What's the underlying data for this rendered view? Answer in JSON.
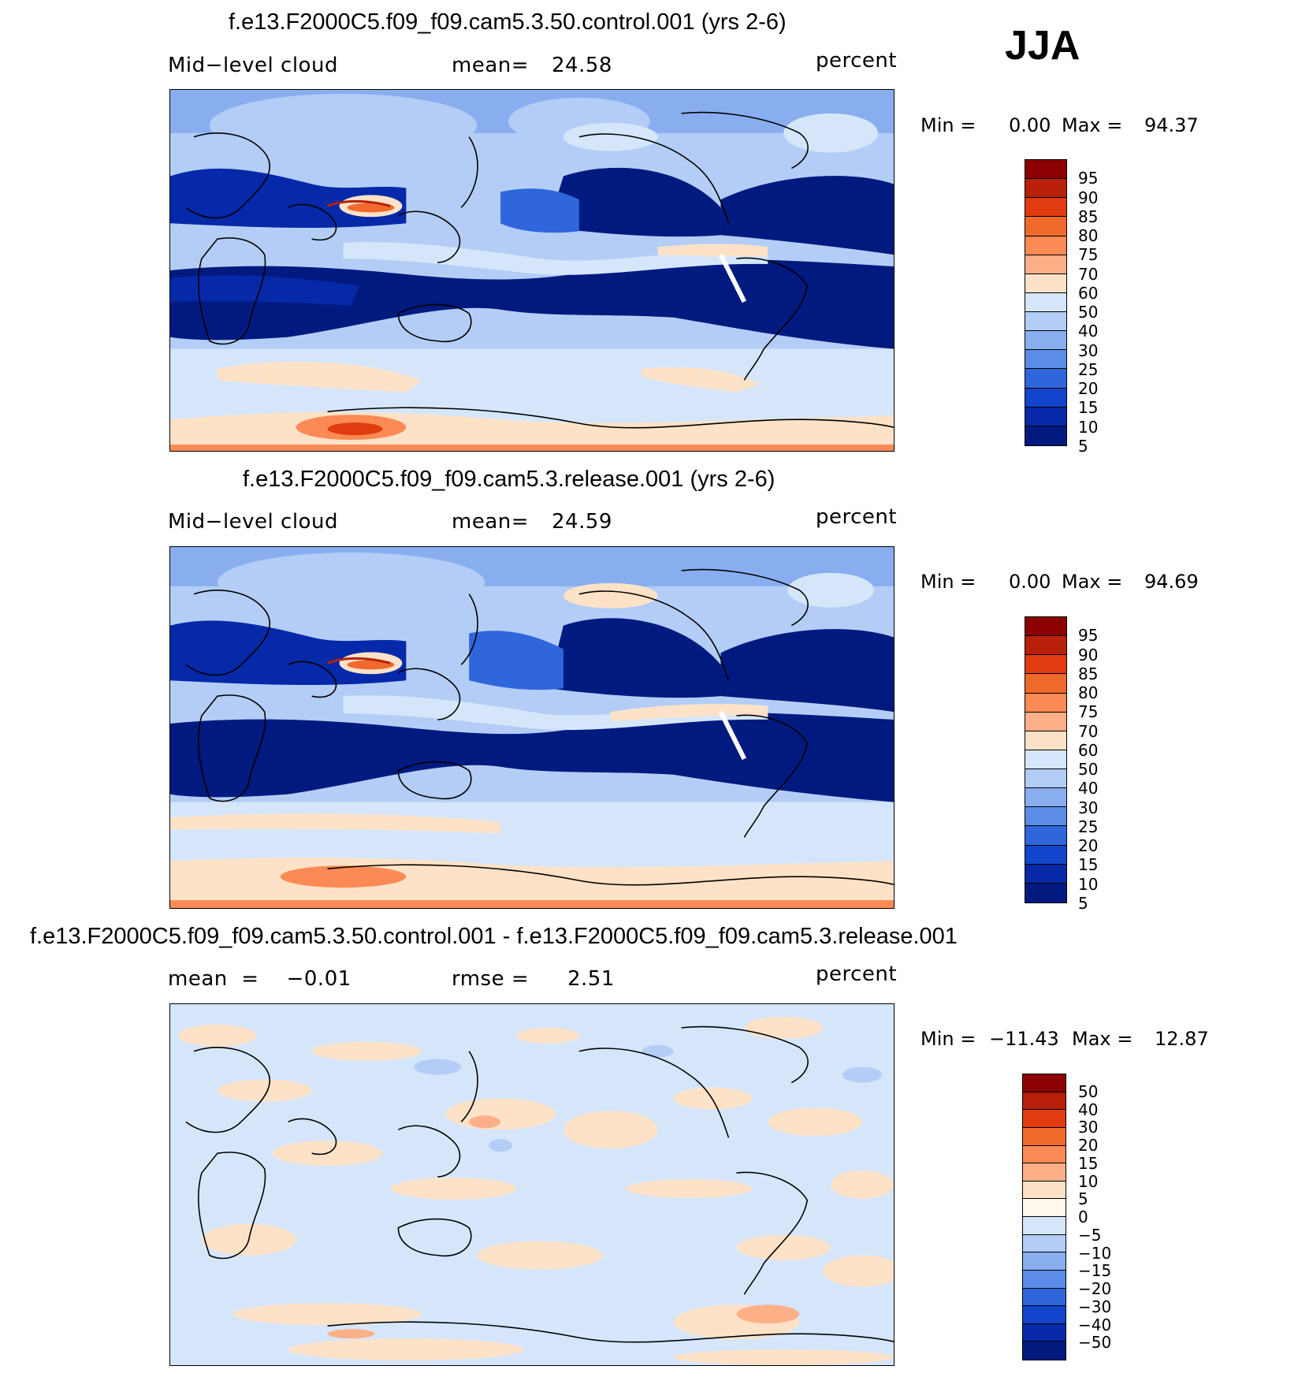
{
  "season": "JJA",
  "panels": [
    {
      "title": "f.e13.F2000C5.f09_f09.cam5.3.50.control.001 (yrs 2-6)",
      "left_label": "Mid−level  cloud",
      "stat1_label": "mean=",
      "stat1_value": "24.58",
      "stat2_label": "",
      "stat2_value": "",
      "units": "percent",
      "min_label": "Min  =",
      "min_value": "0.00",
      "max_label": "Max  =",
      "max_value": "94.37",
      "colorbar": {
        "colors": [
          "#8b0000",
          "#b8200a",
          "#e03c10",
          "#f06a2c",
          "#fb8a55",
          "#fdb088",
          "#fde2c8",
          "#d6e6fa",
          "#b3cdf6",
          "#88aef0",
          "#5b8de8",
          "#2f66dc",
          "#1245cc",
          "#0529a8",
          "#001a80"
        ],
        "labels": [
          "95",
          "90",
          "85",
          "80",
          "75",
          "70",
          "60",
          "50",
          "40",
          "30",
          "25",
          "20",
          "15",
          "10",
          "5"
        ]
      }
    },
    {
      "title": "f.e13.F2000C5.f09_f09.cam5.3.release.001 (yrs 2-6)",
      "left_label": "Mid−level  cloud",
      "stat1_label": "mean=",
      "stat1_value": "24.59",
      "stat2_label": "",
      "stat2_value": "",
      "units": "percent",
      "min_label": "Min  =",
      "min_value": "0.00",
      "max_label": "Max  =",
      "max_value": "94.69",
      "colorbar": {
        "colors": [
          "#8b0000",
          "#b8200a",
          "#e03c10",
          "#f06a2c",
          "#fb8a55",
          "#fdb088",
          "#fde2c8",
          "#d6e6fa",
          "#b3cdf6",
          "#88aef0",
          "#5b8de8",
          "#2f66dc",
          "#1245cc",
          "#0529a8",
          "#001a80"
        ],
        "labels": [
          "95",
          "90",
          "85",
          "80",
          "75",
          "70",
          "60",
          "50",
          "40",
          "30",
          "25",
          "20",
          "15",
          "10",
          "5"
        ]
      }
    },
    {
      "title": "f.e13.F2000C5.f09_f09.cam5.3.50.control.001 - f.e13.F2000C5.f09_f09.cam5.3.release.001",
      "left_label": "mean  =    −0.01",
      "stat1_label": "rmse  =",
      "stat1_value": "2.51",
      "stat2_label": "",
      "stat2_value": "",
      "units": "percent",
      "min_label": "Min  =",
      "min_value": "−11.43",
      "max_label": "Max  =",
      "max_value": "12.87",
      "colorbar": {
        "colors": [
          "#8b0000",
          "#b8200a",
          "#e03c10",
          "#f06a2c",
          "#fb8a55",
          "#fdb088",
          "#fde2c8",
          "#fff8ee",
          "#d6e6fa",
          "#b3cdf6",
          "#88aef0",
          "#5b8de8",
          "#2f66dc",
          "#1245cc",
          "#0529a8",
          "#001a80"
        ],
        "labels": [
          "50",
          "40",
          "30",
          "20",
          "15",
          "10",
          "5",
          "0",
          "−5",
          "−10",
          "−15",
          "−20",
          "−30",
          "−40",
          "−50"
        ]
      }
    }
  ]
}
